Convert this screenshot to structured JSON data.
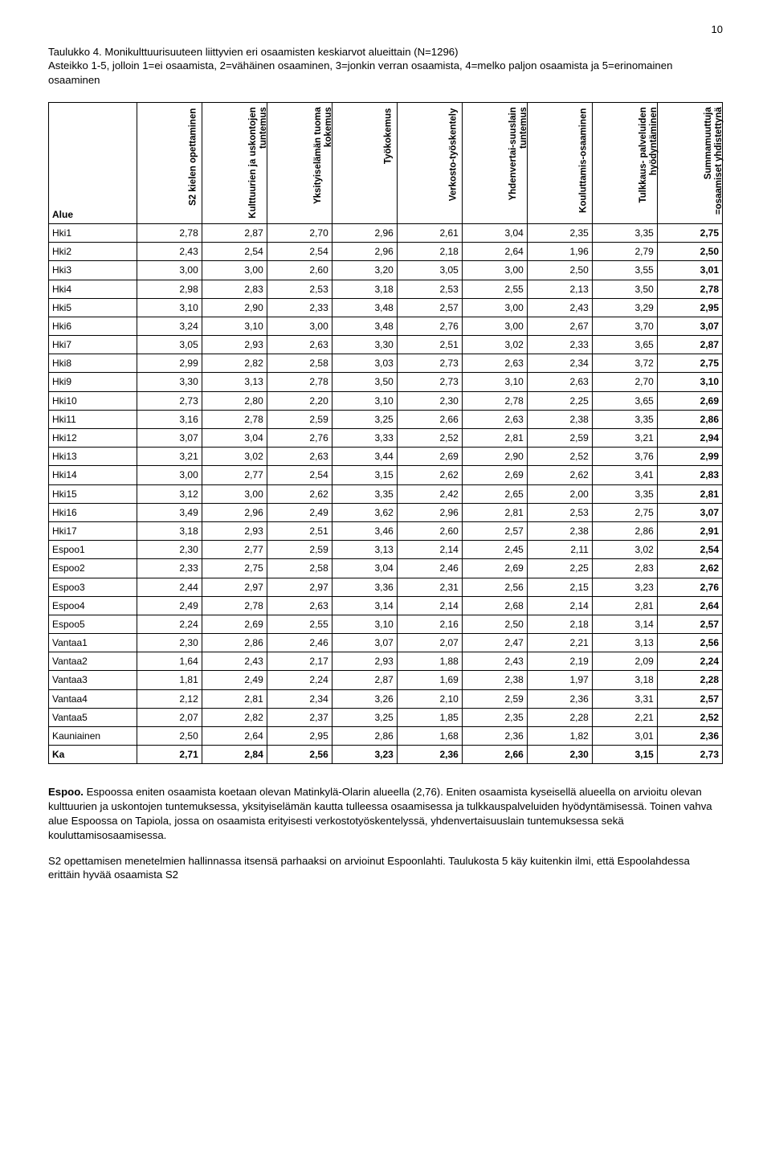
{
  "page_number": "10",
  "caption": "Taulukko 4. Monikulttuurisuuteen liittyvien eri osaamisten keskiarvot alueittain (N=1296)\nAsteikko 1-5, jolloin 1=ei osaamista, 2=vähäinen osaaminen, 3=jonkin verran osaamista, 4=melko paljon osaamista ja 5=erinomainen osaaminen",
  "table": {
    "row_header": "Alue",
    "columns": [
      "S2 kielen opettaminen",
      "Kulttuurien ja uskontojen tuntemus",
      "Yksityiselämän tuoma kokemus",
      "Työkokemus",
      "Verkosto-työskentely",
      "Yhdenvertai-suuslain tuntemus",
      "Kouluttamis-osaaminen",
      "Tulkkaus- palveluiden hyödyntäminen",
      "Summamuuttuja =osaamiset yhdistettynä"
    ],
    "rows": [
      {
        "label": "Hki1",
        "v": [
          "2,78",
          "2,87",
          "2,70",
          "2,96",
          "2,61",
          "3,04",
          "2,35",
          "3,35",
          "2,75"
        ]
      },
      {
        "label": "Hki2",
        "v": [
          "2,43",
          "2,54",
          "2,54",
          "2,96",
          "2,18",
          "2,64",
          "1,96",
          "2,79",
          "2,50"
        ]
      },
      {
        "label": "Hki3",
        "v": [
          "3,00",
          "3,00",
          "2,60",
          "3,20",
          "3,05",
          "3,00",
          "2,50",
          "3,55",
          "3,01"
        ]
      },
      {
        "label": "Hki4",
        "v": [
          "2,98",
          "2,83",
          "2,53",
          "3,18",
          "2,53",
          "2,55",
          "2,13",
          "3,50",
          "2,78"
        ]
      },
      {
        "label": "Hki5",
        "v": [
          "3,10",
          "2,90",
          "2,33",
          "3,48",
          "2,57",
          "3,00",
          "2,43",
          "3,29",
          "2,95"
        ]
      },
      {
        "label": "Hki6",
        "v": [
          "3,24",
          "3,10",
          "3,00",
          "3,48",
          "2,76",
          "3,00",
          "2,67",
          "3,70",
          "3,07"
        ]
      },
      {
        "label": "Hki7",
        "v": [
          "3,05",
          "2,93",
          "2,63",
          "3,30",
          "2,51",
          "3,02",
          "2,33",
          "3,65",
          "2,87"
        ]
      },
      {
        "label": "Hki8",
        "v": [
          "2,99",
          "2,82",
          "2,58",
          "3,03",
          "2,73",
          "2,63",
          "2,34",
          "3,72",
          "2,75"
        ]
      },
      {
        "label": "Hki9",
        "v": [
          "3,30",
          "3,13",
          "2,78",
          "3,50",
          "2,73",
          "3,10",
          "2,63",
          "2,70",
          "3,10"
        ]
      },
      {
        "label": "Hki10",
        "v": [
          "2,73",
          "2,80",
          "2,20",
          "3,10",
          "2,30",
          "2,78",
          "2,25",
          "3,65",
          "2,69"
        ]
      },
      {
        "label": "Hki11",
        "v": [
          "3,16",
          "2,78",
          "2,59",
          "3,25",
          "2,66",
          "2,63",
          "2,38",
          "3,35",
          "2,86"
        ]
      },
      {
        "label": "Hki12",
        "v": [
          "3,07",
          "3,04",
          "2,76",
          "3,33",
          "2,52",
          "2,81",
          "2,59",
          "3,21",
          "2,94"
        ]
      },
      {
        "label": "Hki13",
        "v": [
          "3,21",
          "3,02",
          "2,63",
          "3,44",
          "2,69",
          "2,90",
          "2,52",
          "3,76",
          "2,99"
        ]
      },
      {
        "label": "Hki14",
        "v": [
          "3,00",
          "2,77",
          "2,54",
          "3,15",
          "2,62",
          "2,69",
          "2,62",
          "3,41",
          "2,83"
        ]
      },
      {
        "label": "Hki15",
        "v": [
          "3,12",
          "3,00",
          "2,62",
          "3,35",
          "2,42",
          "2,65",
          "2,00",
          "3,35",
          "2,81"
        ]
      },
      {
        "label": "Hki16",
        "v": [
          "3,49",
          "2,96",
          "2,49",
          "3,62",
          "2,96",
          "2,81",
          "2,53",
          "2,75",
          "3,07"
        ]
      },
      {
        "label": "Hki17",
        "v": [
          "3,18",
          "2,93",
          "2,51",
          "3,46",
          "2,60",
          "2,57",
          "2,38",
          "2,86",
          "2,91"
        ]
      },
      {
        "label": "Espoo1",
        "v": [
          "2,30",
          "2,77",
          "2,59",
          "3,13",
          "2,14",
          "2,45",
          "2,11",
          "3,02",
          "2,54"
        ]
      },
      {
        "label": "Espoo2",
        "v": [
          "2,33",
          "2,75",
          "2,58",
          "3,04",
          "2,46",
          "2,69",
          "2,25",
          "2,83",
          "2,62"
        ]
      },
      {
        "label": "Espoo3",
        "v": [
          "2,44",
          "2,97",
          "2,97",
          "3,36",
          "2,31",
          "2,56",
          "2,15",
          "3,23",
          "2,76"
        ]
      },
      {
        "label": "Espoo4",
        "v": [
          "2,49",
          "2,78",
          "2,63",
          "3,14",
          "2,14",
          "2,68",
          "2,14",
          "2,81",
          "2,64"
        ]
      },
      {
        "label": "Espoo5",
        "v": [
          "2,24",
          "2,69",
          "2,55",
          "3,10",
          "2,16",
          "2,50",
          "2,18",
          "3,14",
          "2,57"
        ]
      },
      {
        "label": "Vantaa1",
        "v": [
          "2,30",
          "2,86",
          "2,46",
          "3,07",
          "2,07",
          "2,47",
          "2,21",
          "3,13",
          "2,56"
        ]
      },
      {
        "label": "Vantaa2",
        "v": [
          "1,64",
          "2,43",
          "2,17",
          "2,93",
          "1,88",
          "2,43",
          "2,19",
          "2,09",
          "2,24"
        ]
      },
      {
        "label": "Vantaa3",
        "v": [
          "1,81",
          "2,49",
          "2,24",
          "2,87",
          "1,69",
          "2,38",
          "1,97",
          "3,18",
          "2,28"
        ]
      },
      {
        "label": "Vantaa4",
        "v": [
          "2,12",
          "2,81",
          "2,34",
          "3,26",
          "2,10",
          "2,59",
          "2,36",
          "3,31",
          "2,57"
        ]
      },
      {
        "label": "Vantaa5",
        "v": [
          "2,07",
          "2,82",
          "2,37",
          "3,25",
          "1,85",
          "2,35",
          "2,28",
          "2,21",
          "2,52"
        ]
      },
      {
        "label": "Kauniainen",
        "v": [
          "2,50",
          "2,64",
          "2,95",
          "2,86",
          "1,68",
          "2,36",
          "1,82",
          "3,01",
          "2,36"
        ]
      },
      {
        "label": "Ka",
        "v": [
          "2,71",
          "2,84",
          "2,56",
          "3,23",
          "2,36",
          "2,66",
          "2,30",
          "3,15",
          "2,73"
        ],
        "bold": true
      }
    ]
  },
  "body": {
    "p1_lead": "Espoo.",
    "p1_rest": " Espoossa eniten osaamista koetaan olevan Matinkylä-Olarin alueella (2,76). Eniten osaamista kyseisellä alueella on arvioitu olevan kulttuurien ja uskontojen tuntemuksessa, yksityiselämän kautta tulleessa osaamisessa ja tulkkauspalveluiden hyödyntämisessä. Toinen vahva alue Espoossa on Tapiola, jossa on osaamista erityisesti verkostotyöskentelyssä, yhdenvertaisuuslain tuntemuksessa sekä kouluttamisosaamisessa.",
    "p2": "S2 opettamisen menetelmien hallinnassa itsensä parhaaksi on arvioinut Espoonlahti. Taulukosta 5 käy kuitenkin ilmi, että Espoolahdessa erittäin hyvää osaamista S2"
  }
}
